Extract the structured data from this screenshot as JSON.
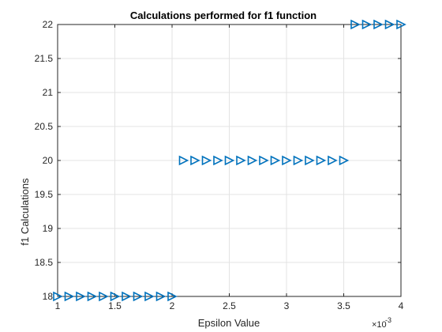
{
  "chart_data": {
    "type": "scatter",
    "title": "Calculations performed for f1 function",
    "xlabel": "Epsilon Value",
    "ylabel": "f1 Calculations",
    "x_exponent_label": "×10",
    "x_exponent_power": "-3",
    "xlim": [
      1,
      4
    ],
    "ylim": [
      18,
      22
    ],
    "grid": true,
    "xticks": [
      1,
      1.5,
      2,
      2.5,
      3,
      3.5,
      4
    ],
    "xtick_labels": [
      "1",
      "1.5",
      "2",
      "2.5",
      "3",
      "3.5",
      "4"
    ],
    "yticks": [
      18,
      18.5,
      19,
      19.5,
      20,
      20.5,
      21,
      21.5,
      22
    ],
    "ytick_labels": [
      "18",
      "18.5",
      "19",
      "19.5",
      "20",
      "20.5",
      "21",
      "21.5",
      "22"
    ],
    "marker": "triangle-right",
    "marker_color": "#0072BD",
    "series": [
      {
        "x": [
          1.0,
          1.1,
          1.2,
          1.3,
          1.4,
          1.5,
          1.6,
          1.7,
          1.8,
          1.9,
          2.0,
          2.1,
          2.2,
          2.3,
          2.4,
          2.5,
          2.6,
          2.7,
          2.8,
          2.9,
          3.0,
          3.1,
          3.2,
          3.3,
          3.4,
          3.5,
          3.6,
          3.7,
          3.8,
          3.9,
          4.0
        ],
        "y": [
          18,
          18,
          18,
          18,
          18,
          18,
          18,
          18,
          18,
          18,
          18,
          20,
          20,
          20,
          20,
          20,
          20,
          20,
          20,
          20,
          20,
          20,
          20,
          20,
          20,
          20,
          22,
          22,
          22,
          22,
          22
        ]
      }
    ]
  }
}
